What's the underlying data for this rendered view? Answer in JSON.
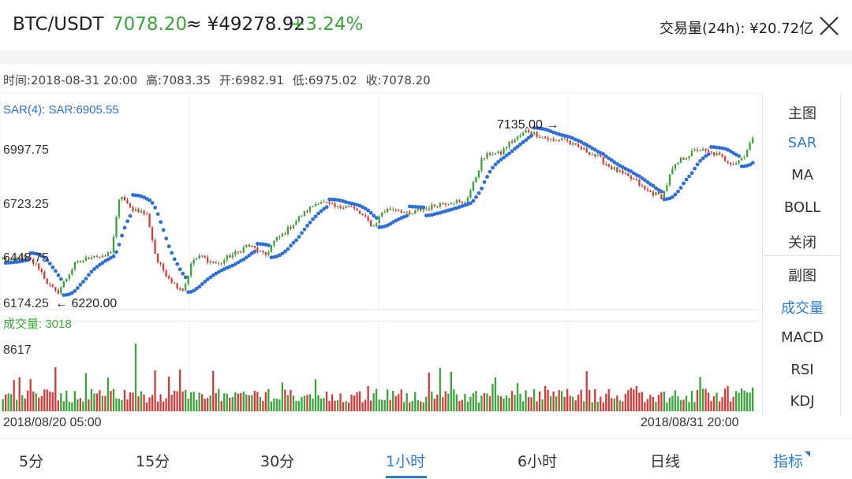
{
  "header": {
    "pair": "BTC/USDT",
    "price": "7078.20",
    "approx": "≈ ¥49278.92",
    "change": "+3.24%",
    "volume_24h": "交易量(24h): ¥20.72亿"
  },
  "info": {
    "time": "时间:2018-08-31 20:00",
    "high": "高:7083.35",
    "open": "开:6982.91",
    "low": "低:6975.02",
    "close": "收:7078.20"
  },
  "main_chart": {
    "indicator_label": "SAR(4): SAR:6905.55",
    "y_ticks": [
      "6997.75",
      "6723.25",
      "6448.75",
      "6174.25"
    ],
    "max_annotation": "7135.00 →",
    "min_annotation": "← 6220.00"
  },
  "volume_chart": {
    "label": "成交量: 3018",
    "top_tick": "8617",
    "start_date": "2018/08/20 05:00",
    "end_date": "2018/08/31 20:00"
  },
  "side_panel": {
    "main_title": "主图",
    "main_items": [
      "SAR",
      "MA",
      "BOLL",
      "关闭"
    ],
    "sub_title": "副图",
    "sub_items": [
      "成交量",
      "MACD",
      "RSI",
      "KDJ"
    ],
    "active_main": "SAR",
    "active_sub": "成交量"
  },
  "tabs": [
    "5分",
    "15分",
    "30分",
    "1小时",
    "6小时",
    "日线",
    "指标"
  ],
  "active_tab": "1小时",
  "colors": {
    "up": "#3aa53a",
    "down": "#d83a3a",
    "sar": "#2f6fd6",
    "accent": "#2f7bd1"
  },
  "chart_data": {
    "type": "candlestick",
    "x_range": [
      "2018/08/20 05:00",
      "2018/08/31 20:00"
    ],
    "ylim": [
      6174.25,
      7135
    ],
    "last_close": 7078.2,
    "high_marker": 7135.0,
    "low_marker": 6220.0,
    "sar_value": 6905.55,
    "volume_max": 8617,
    "volume_last": 3018,
    "price_path": [
      6430,
      6410,
      6440,
      6420,
      6380,
      6290,
      6240,
      6320,
      6400,
      6420,
      6450,
      6430,
      6470,
      6780,
      6700,
      6690,
      6660,
      6420,
      6350,
      6290,
      6260,
      6420,
      6440,
      6410,
      6400,
      6440,
      6460,
      6500,
      6480,
      6440,
      6520,
      6560,
      6610,
      6660,
      6700,
      6740,
      6720,
      6700,
      6720,
      6690,
      6650,
      6600,
      6680,
      6700,
      6690,
      6660,
      6690,
      6700,
      6720,
      6730,
      6740,
      6720,
      6820,
      6960,
      7000,
      6990,
      7050,
      7080,
      7120,
      7100,
      7080,
      7060,
      7080,
      7040,
      7020,
      7000,
      6970,
      6930,
      6900,
      6870,
      6850,
      6800,
      6780,
      6760,
      6900,
      6960,
      6990,
      7020,
      7000,
      6990,
      6960,
      6940,
      6980,
      7078.2
    ]
  }
}
